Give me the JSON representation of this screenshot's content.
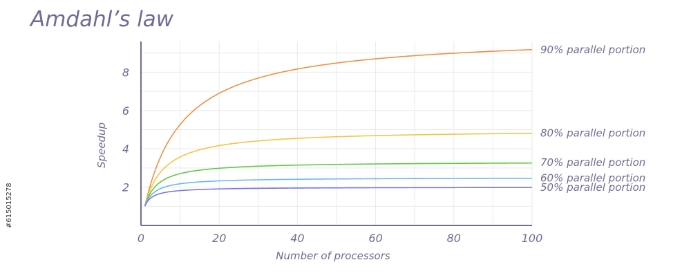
{
  "side_id": "#615015278",
  "colors": {
    "text": "#6e6c93",
    "axis": "#6e6c93",
    "grid": "#e9e9ee"
  },
  "chart_data": {
    "type": "line",
    "title": "Amdahl’s law",
    "xlabel": "Number of processors",
    "ylabel": "Speedup",
    "xlim": [
      0,
      100
    ],
    "ylim": [
      0,
      9.6
    ],
    "xticks": [
      0,
      20,
      40,
      60,
      80,
      100
    ],
    "yticks": [
      2,
      4,
      6,
      8
    ],
    "grid": true,
    "series": [
      {
        "name": "90% parallel portion",
        "parallel_fraction": 0.9,
        "color": "#f0913f",
        "x": [
          1,
          2,
          4,
          8,
          12,
          16,
          20,
          30,
          40,
          50,
          60,
          70,
          80,
          90,
          100
        ],
        "values": [
          1.0,
          1.82,
          3.08,
          4.71,
          5.71,
          6.4,
          6.9,
          7.69,
          8.16,
          8.47,
          8.7,
          8.86,
          8.99,
          9.09,
          9.17
        ]
      },
      {
        "name": "80% parallel portion",
        "parallel_fraction": 0.8,
        "color": "#f5c440",
        "x": [
          1,
          2,
          4,
          8,
          12,
          16,
          20,
          30,
          40,
          50,
          60,
          70,
          80,
          90,
          100
        ],
        "values": [
          1.0,
          1.67,
          2.5,
          3.33,
          3.75,
          4.0,
          4.17,
          4.41,
          4.55,
          4.63,
          4.69,
          4.73,
          4.76,
          4.79,
          4.81
        ]
      },
      {
        "name": "70% parallel portion",
        "parallel_fraction": 0.7,
        "color": "#5ccc3f",
        "x": [
          1,
          2,
          4,
          8,
          12,
          16,
          20,
          30,
          40,
          50,
          60,
          70,
          80,
          90,
          100
        ],
        "values": [
          1.0,
          1.54,
          2.11,
          2.58,
          2.79,
          2.91,
          2.99,
          3.09,
          3.15,
          3.19,
          3.22,
          3.24,
          3.26,
          3.27,
          3.28
        ]
      },
      {
        "name": "60% parallel portion",
        "parallel_fraction": 0.6,
        "color": "#6ab8f0",
        "x": [
          1,
          2,
          4,
          8,
          12,
          16,
          20,
          30,
          40,
          50,
          60,
          70,
          80,
          90,
          100
        ],
        "values": [
          1.0,
          1.43,
          1.82,
          2.11,
          2.22,
          2.29,
          2.33,
          2.38,
          2.42,
          2.43,
          2.44,
          2.45,
          2.46,
          2.47,
          2.47
        ]
      },
      {
        "name": "50% parallel portion",
        "parallel_fraction": 0.5,
        "color": "#7a78e0",
        "x": [
          1,
          2,
          4,
          8,
          12,
          16,
          20,
          30,
          40,
          50,
          60,
          70,
          80,
          90,
          100
        ],
        "values": [
          1.0,
          1.33,
          1.6,
          1.78,
          1.85,
          1.88,
          1.9,
          1.94,
          1.95,
          1.96,
          1.97,
          1.97,
          1.98,
          1.98,
          1.98
        ]
      }
    ]
  }
}
